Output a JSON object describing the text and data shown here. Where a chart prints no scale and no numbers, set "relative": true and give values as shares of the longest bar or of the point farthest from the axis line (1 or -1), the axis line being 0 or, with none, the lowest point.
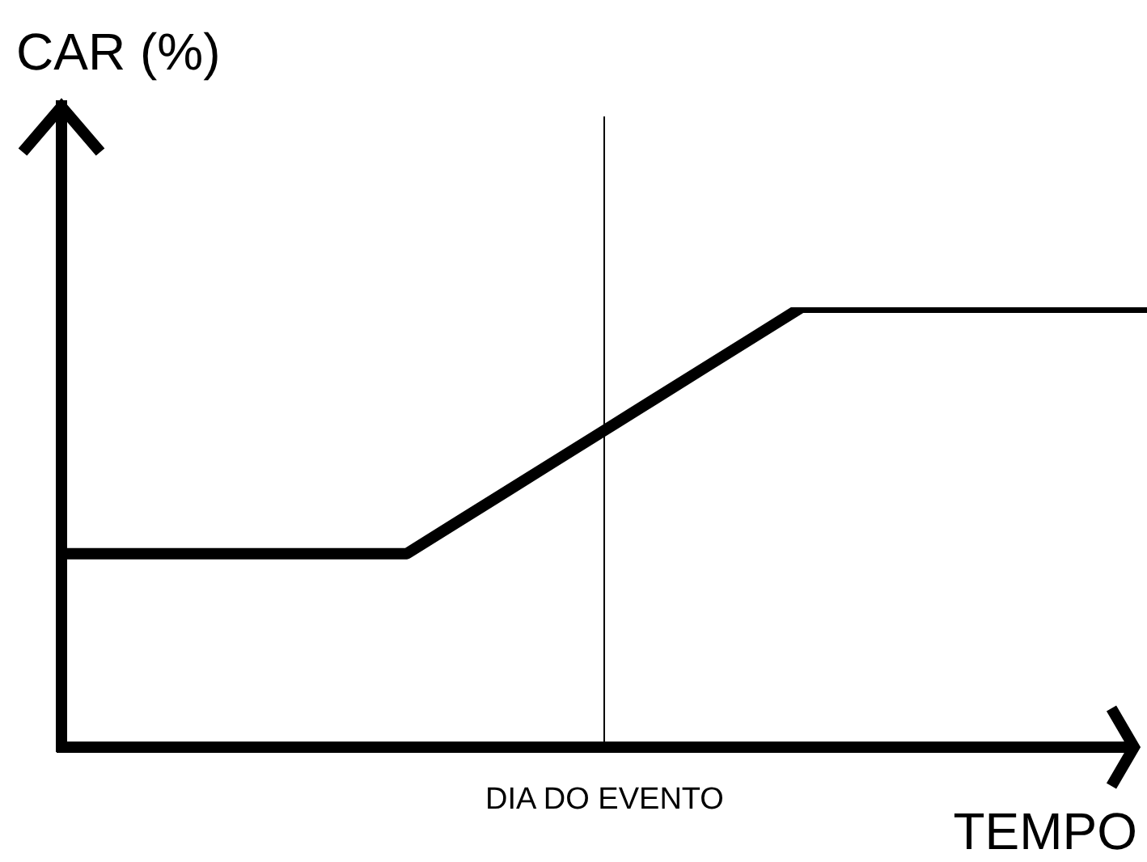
{
  "chart_data": {
    "type": "line",
    "xlabel": "TEMPO",
    "ylabel": "CAR (%)",
    "relative": true,
    "marker": "none",
    "categories": [
      null,
      null,
      null,
      null,
      null,
      null,
      null,
      null,
      null,
      null,
      null,
      null,
      null,
      null,
      null,
      null,
      null,
      null,
      null,
      null,
      null,
      null,
      null
    ],
    "values": [
      0.44,
      0.44,
      0.44,
      0.44,
      0.44,
      0.44,
      0.44,
      0.44,
      0.51,
      0.58,
      0.65,
      0.72,
      0.79,
      0.86,
      0.93,
      1,
      1,
      1,
      1,
      1,
      1,
      1,
      1
    ],
    "color": "#000000",
    "annotations": [
      "DIA DO EVENTO"
    ]
  }
}
